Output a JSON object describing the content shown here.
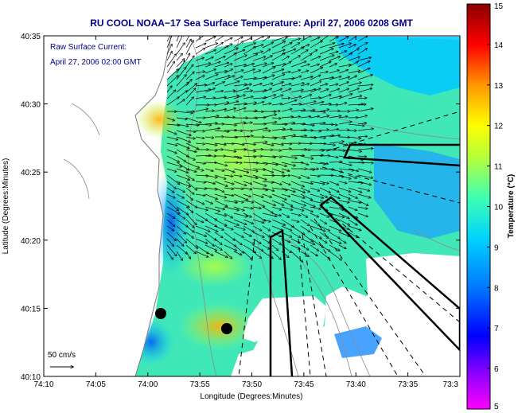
{
  "chart_data": {
    "type": "heatmap",
    "title": "RU COOL  NOAA−17  Sea Surface Temperature:  April 27, 2006 0208 GMT",
    "annotation_lines": [
      "Raw Surface Current:",
      "April 27, 2006 02:00 GMT"
    ],
    "xlabel": "Longitude (Degrees:Minutes)",
    "ylabel": "Latitude (Degrees:Minutes)",
    "x_ticks": [
      "74:10",
      "74:05",
      "74:00",
      "73:55",
      "73:50",
      "73:45",
      "73:40",
      "73:35",
      "73:3"
    ],
    "y_ticks": [
      "40:10",
      "40:15",
      "40:20",
      "40:25",
      "40:30",
      "40:35"
    ],
    "xlim": [
      -74.1667,
      -73.5
    ],
    "ylim": [
      40.1667,
      40.5833
    ],
    "colorbar": {
      "label": "Temperature (°C)",
      "ticks": [
        "5",
        "6",
        "7",
        "8",
        "9",
        "10",
        "11",
        "12",
        "13",
        "14",
        "15"
      ],
      "range": [
        5,
        15
      ],
      "colors": [
        "#ff00ff",
        "#7a00ff",
        "#0000ff",
        "#0078ff",
        "#00d2ff",
        "#3cffb4",
        "#b4ff3c",
        "#ffff00",
        "#ff9600",
        "#ff0000",
        "#8b0000"
      ]
    },
    "vector_scale_label": "50 cm/s",
    "colors": {
      "title": "#00008b",
      "land": "#ffffff",
      "cloud_mask": "#ffffff",
      "dominant_sst": "#40e8b8"
    }
  }
}
